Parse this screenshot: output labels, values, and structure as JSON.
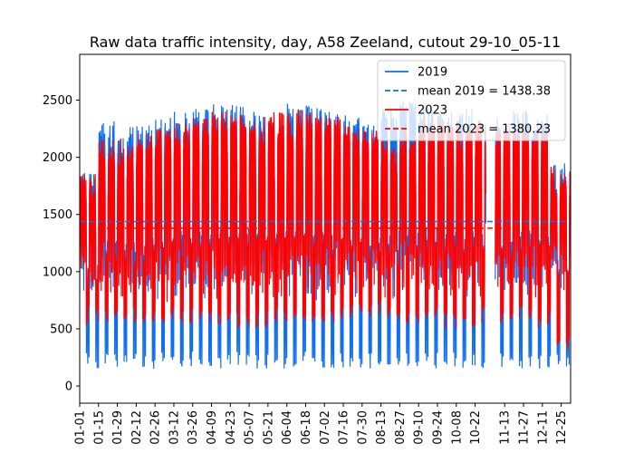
{
  "chart_data": {
    "type": "line",
    "title": "Raw data traffic intensity, day, A58 Zeeland, cutout 29-10_05-11",
    "xlabel": "",
    "ylabel": "",
    "xlim": [
      0,
      365
    ],
    "ylim": [
      -150,
      2900
    ],
    "yticks": [
      0,
      500,
      1000,
      1500,
      2000,
      2500
    ],
    "xtick_labels": [
      "01-01",
      "01-15",
      "01-29",
      "02-12",
      "02-26",
      "03-12",
      "03-26",
      "04-09",
      "04-23",
      "05-07",
      "05-21",
      "06-04",
      "06-18",
      "07-02",
      "07-16",
      "07-30",
      "08-13",
      "08-27",
      "09-10",
      "09-24",
      "10-08",
      "10-22",
      "11-13",
      "11-27",
      "12-11",
      "12-25"
    ],
    "xtick_days": [
      0,
      14,
      28,
      42,
      56,
      70,
      84,
      98,
      112,
      126,
      140,
      154,
      168,
      182,
      196,
      210,
      224,
      238,
      252,
      266,
      280,
      294,
      316,
      330,
      344,
      358
    ],
    "gap": [
      302,
      309
    ],
    "series": [
      {
        "name": "2019",
        "color": "#0f6ef0",
        "style": "solid",
        "weekday_peak": [
          1700,
          2150,
          2100,
          2130,
          2200,
          2250,
          2280,
          2300,
          2300,
          2250,
          2250,
          2300,
          2300,
          2250,
          2200,
          2150,
          2250,
          2350,
          2300,
          2250,
          2250,
          2200,
          2200,
          2250,
          2200,
          1800
        ],
        "weekend_low": [
          150,
          150,
          150,
          150,
          150,
          150,
          150,
          150,
          150,
          150,
          150,
          150,
          150,
          150,
          150,
          150,
          150,
          150,
          150,
          150,
          150,
          150,
          150,
          150,
          150,
          150
        ],
        "max_value": 2750,
        "min_value": -5
      },
      {
        "name": "mean 2019 = 1438.38",
        "color": "#0f6ef0",
        "style": "dashed",
        "value": 1438.38
      },
      {
        "name": "2023",
        "color": "#ff0000",
        "style": "solid",
        "weekday_peak": [
          1700,
          2000,
          2000,
          2050,
          2100,
          2150,
          2200,
          2250,
          2250,
          2200,
          2250,
          2250,
          2250,
          2200,
          2150,
          2100,
          2000,
          2100,
          2200,
          2200,
          2150,
          2150,
          2100,
          2150,
          2100,
          1750
        ],
        "weekend_low": [
          550,
          550,
          550,
          550,
          550,
          550,
          550,
          500,
          500,
          500,
          550,
          550,
          550,
          550,
          600,
          600,
          550,
          500,
          550,
          500,
          500,
          550,
          550,
          550,
          500,
          300
        ],
        "max_value": 2540,
        "min_value": 0
      },
      {
        "name": "mean 2023 = 1380.23",
        "color": "#ff0000",
        "style": "dashed",
        "value": 1380.23
      }
    ],
    "legend_position": "top-right"
  }
}
